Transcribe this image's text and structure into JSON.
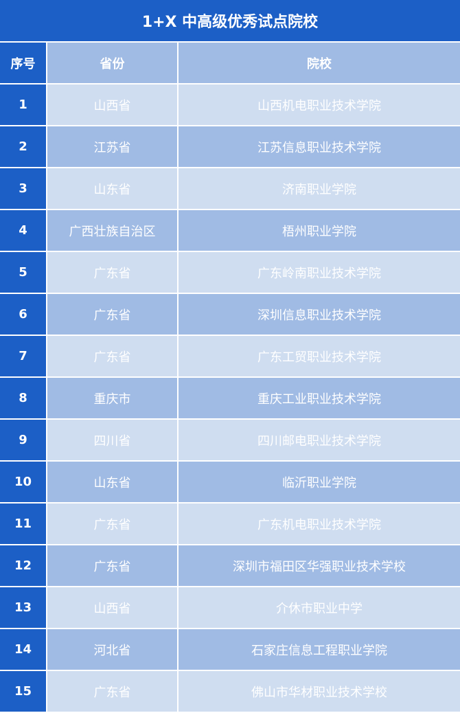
{
  "title": "1+X 中高级优秀试点院校",
  "colors": {
    "primary": "#1c5fc6",
    "header": "#a0bbe4",
    "row_light": "#cfddf0",
    "row_dark": "#a0bbe4"
  },
  "columns": [
    "序号",
    "省份",
    "院校"
  ],
  "rows": [
    [
      "1",
      "山西省",
      "山西机电职业技术学院"
    ],
    [
      "2",
      "江苏省",
      "江苏信息职业技术学院"
    ],
    [
      "3",
      "山东省",
      "济南职业学院"
    ],
    [
      "4",
      "广西壮族自治区",
      "梧州职业学院"
    ],
    [
      "5",
      "广东省",
      "广东岭南职业技术学院"
    ],
    [
      "6",
      "广东省",
      "深圳信息职业技术学院"
    ],
    [
      "7",
      "广东省",
      "广东工贸职业技术学院"
    ],
    [
      "8",
      "重庆市",
      "重庆工业职业技术学院"
    ],
    [
      "9",
      "四川省",
      "四川邮电职业技术学院"
    ],
    [
      "10",
      "山东省",
      "临沂职业学院"
    ],
    [
      "11",
      "广东省",
      "广东机电职业技术学院"
    ],
    [
      "12",
      "广东省",
      "深圳市福田区华强职业技术学校"
    ],
    [
      "13",
      "山西省",
      "介休市职业中学"
    ],
    [
      "14",
      "河北省",
      "石家庄信息工程职业学院"
    ],
    [
      "15",
      "广东省",
      "佛山市华材职业技术学校"
    ]
  ]
}
